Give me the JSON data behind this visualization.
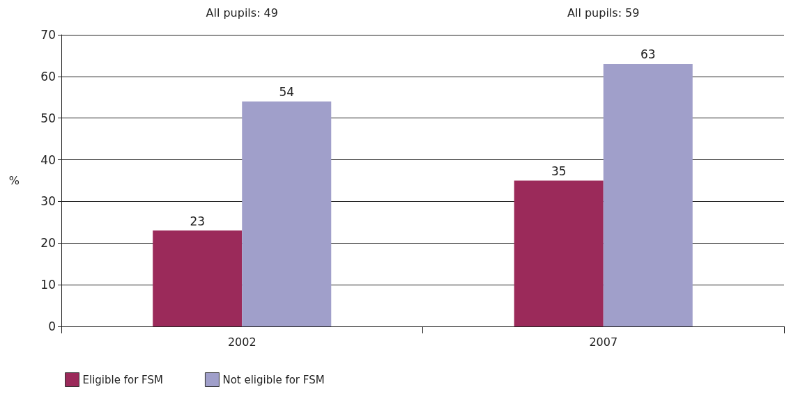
{
  "chart_data": {
    "type": "bar",
    "ylabel": "%",
    "categories": [
      "2002",
      "2007"
    ],
    "series": [
      {
        "name": "Eligible for FSM",
        "color": "#9b2a5a",
        "values": [
          23,
          35
        ]
      },
      {
        "name": "Not eligible for FSM",
        "color": "#a09fca",
        "values": [
          54,
          63
        ]
      }
    ],
    "ylim": [
      0,
      70
    ],
    "yticks": [
      0,
      10,
      20,
      30,
      40,
      50,
      60,
      70
    ],
    "grid": "y",
    "legend": "bottom left",
    "data_labels": true,
    "annotations": [
      "All pupils: 49",
      "All pupils: 59"
    ]
  }
}
